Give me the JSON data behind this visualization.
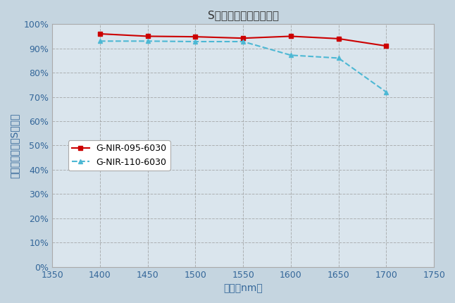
{
  "title": "S偶光での相対回折効率",
  "xlabel": "波長（nm）",
  "ylabel": "相対回折効率（S偶光）",
  "xlim": [
    1350,
    1750
  ],
  "ylim": [
    0,
    1.0
  ],
  "yticks": [
    0.0,
    0.1,
    0.2,
    0.3,
    0.4,
    0.5,
    0.6,
    0.7,
    0.8,
    0.9,
    1.0
  ],
  "xticks": [
    1350,
    1400,
    1450,
    1500,
    1550,
    1600,
    1650,
    1700,
    1750
  ],
  "background_color": "#c5d5e0",
  "plot_background_color": "#dae5ed",
  "series": [
    {
      "label": "G-NIR-095-6030",
      "x": [
        1400,
        1450,
        1500,
        1550,
        1600,
        1650,
        1700
      ],
      "y": [
        0.96,
        0.95,
        0.948,
        0.942,
        0.95,
        0.94,
        0.91
      ],
      "color": "#cc0000",
      "linestyle": "-",
      "marker": "s",
      "linewidth": 1.5,
      "markersize": 5
    },
    {
      "label": "G-NIR-110-6030",
      "x": [
        1400,
        1450,
        1500,
        1550,
        1600,
        1650,
        1700
      ],
      "y": [
        0.93,
        0.93,
        0.928,
        0.928,
        0.872,
        0.86,
        0.72
      ],
      "color": "#4db8d4",
      "linestyle": "--",
      "marker": "^",
      "linewidth": 1.5,
      "markersize": 5
    }
  ],
  "grid_color": "#999999",
  "grid_linestyle": "--",
  "title_fontsize": 11,
  "axis_label_fontsize": 10,
  "tick_fontsize": 9,
  "legend_fontsize": 9,
  "tick_color": "#336699",
  "axis_label_color": "#336699"
}
